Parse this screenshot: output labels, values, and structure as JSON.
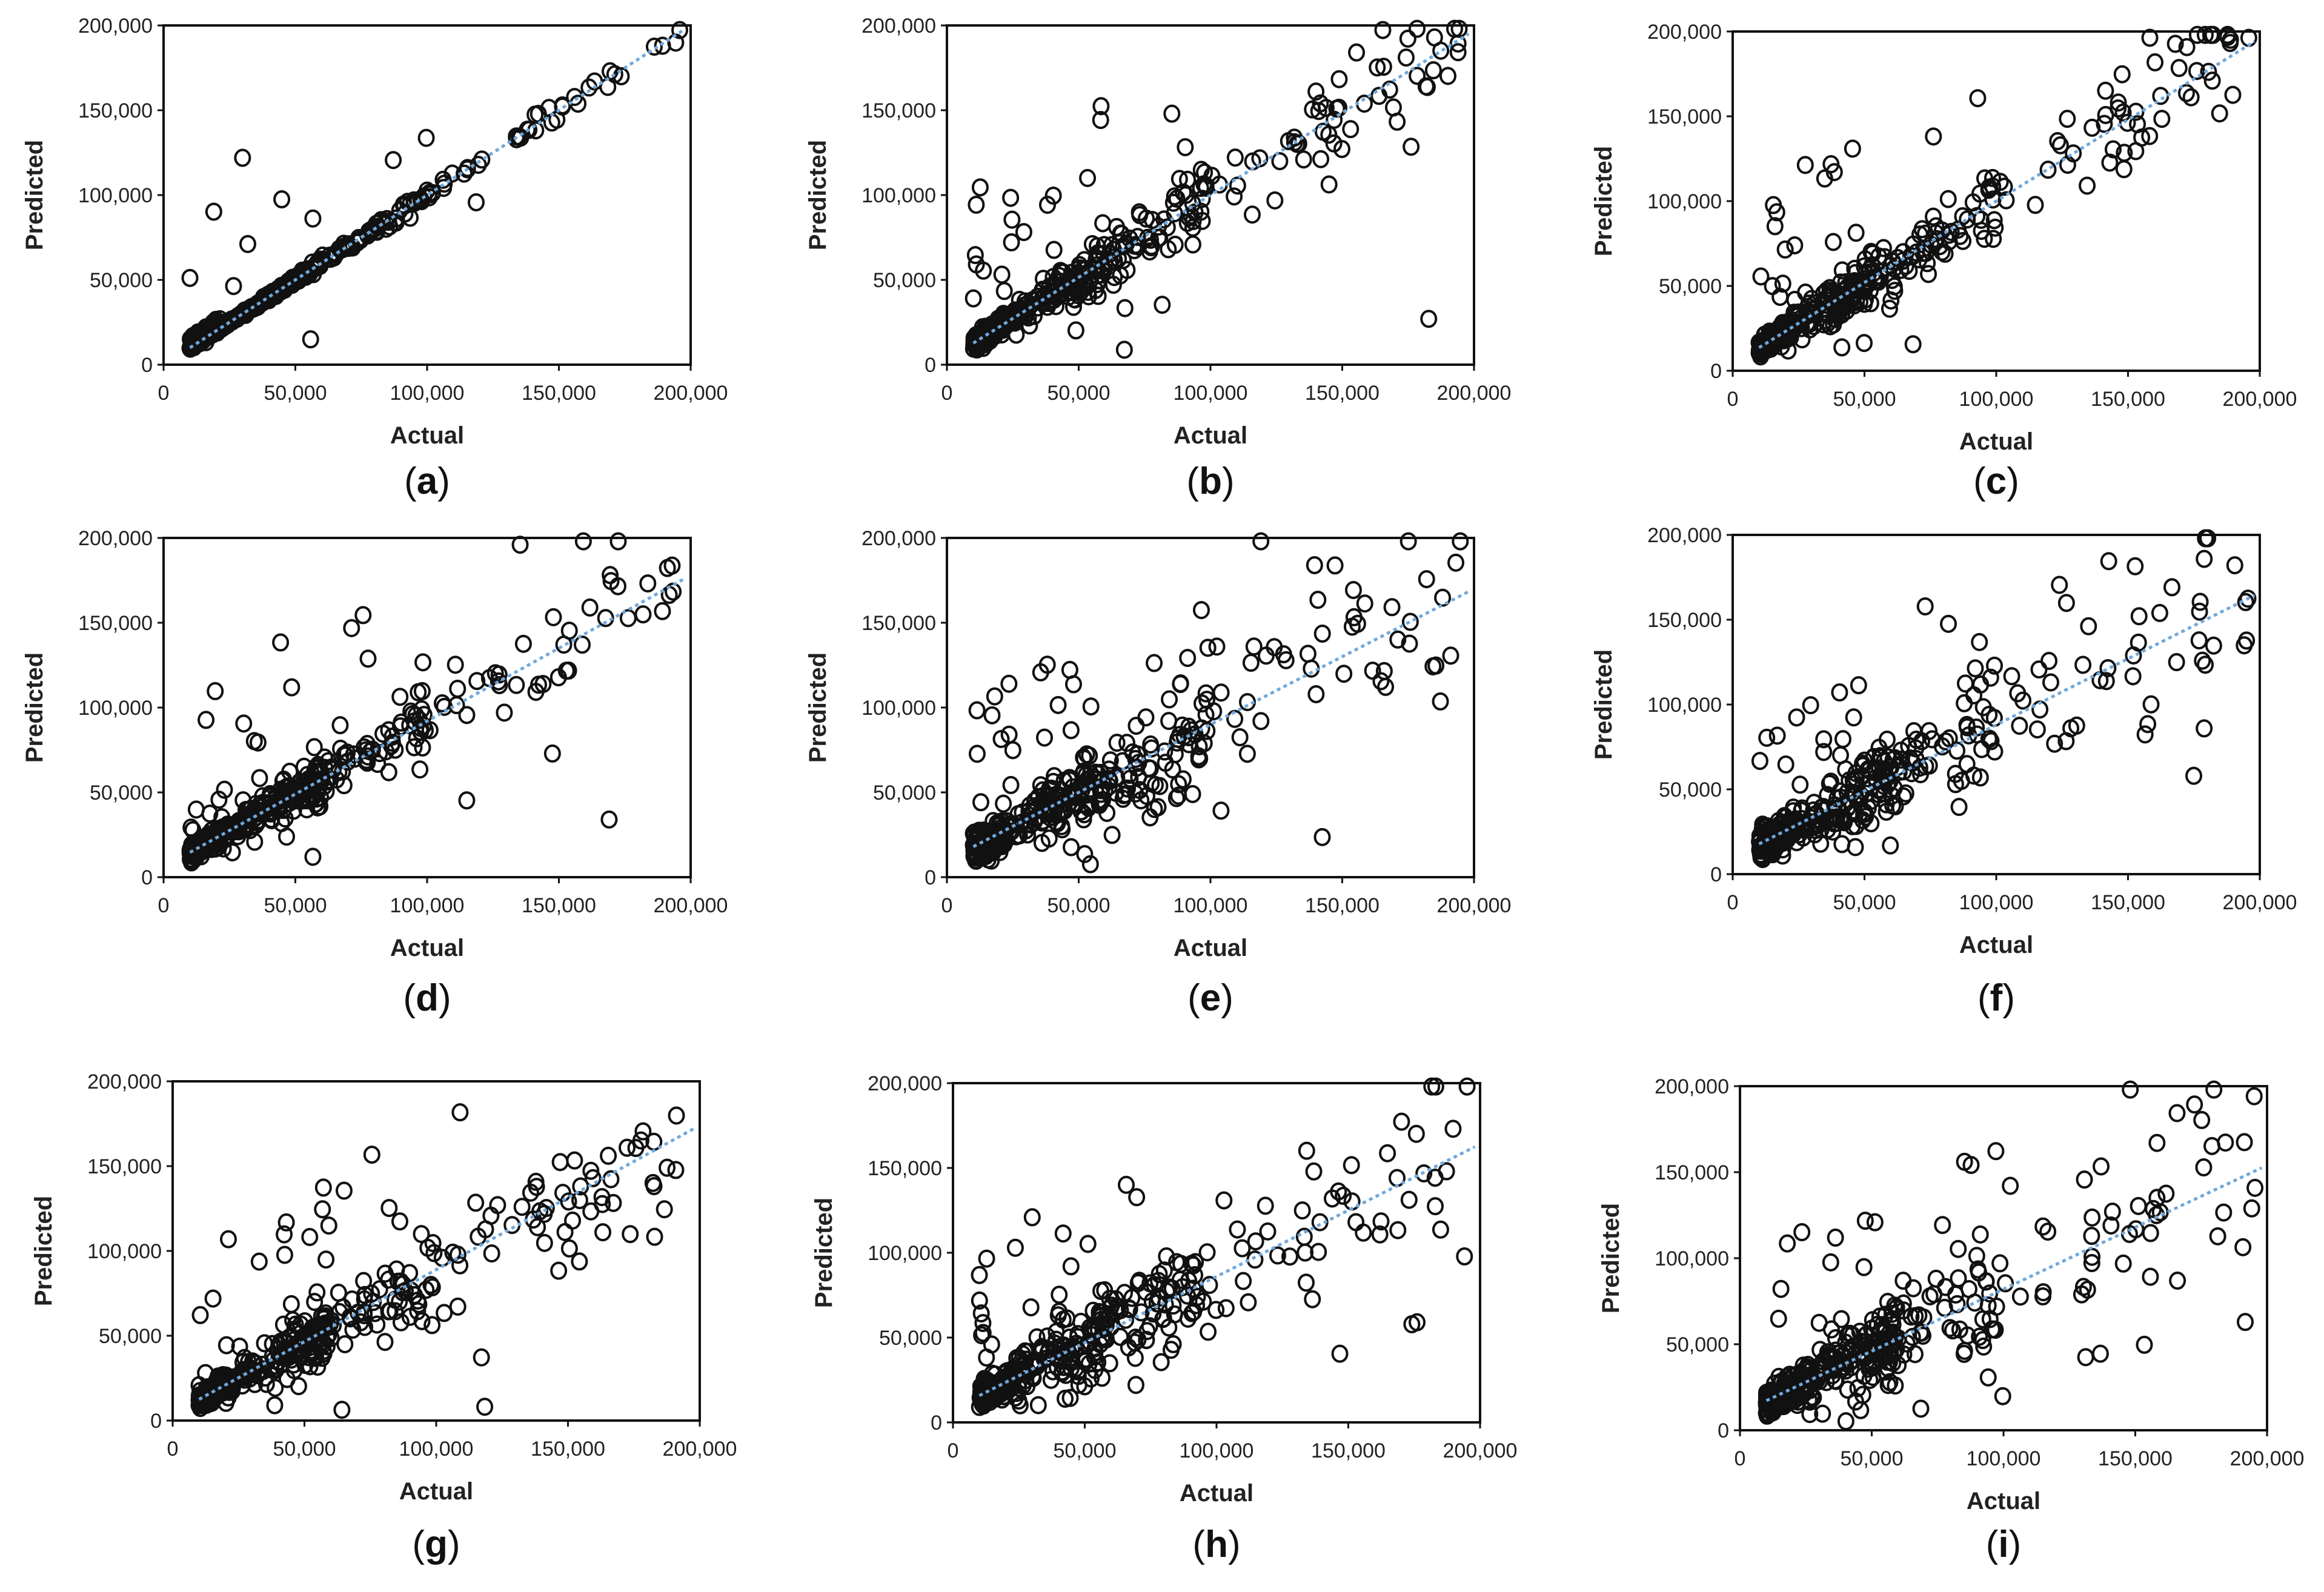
{
  "figure": {
    "background": "#ffffff",
    "marker_color": "#111111",
    "trend_color": "#6fa8dc"
  },
  "chart_data": [
    {
      "id": "a",
      "type": "scatter",
      "title": "",
      "panel_label_open": "(",
      "panel_letter": "a",
      "panel_label_close": ")",
      "xlabel": "Actual",
      "ylabel": "Predicted",
      "xlim": [
        0,
        200000
      ],
      "ylim": [
        0,
        200000
      ],
      "xticks": [
        0,
        50000,
        100000,
        150000,
        200000
      ],
      "yticks": [
        0,
        50000,
        100000,
        150000,
        200000
      ],
      "xtick_labels": [
        "0",
        "50,000",
        "100,000",
        "150,000",
        "200,000"
      ],
      "ytick_labels": [
        "0",
        "50,000",
        "100,000",
        "150,000",
        "200,000"
      ],
      "trend": {
        "slope": 1.0,
        "intercept": 0
      },
      "spread": 0.03,
      "outlier_rate": 0.04
    },
    {
      "id": "b",
      "type": "scatter",
      "title": "",
      "panel_label_open": "(",
      "panel_letter": "b",
      "panel_label_close": ")",
      "xlabel": "Actual",
      "ylabel": "Predicted",
      "xlim": [
        0,
        200000
      ],
      "ylim": [
        0,
        200000
      ],
      "xticks": [
        0,
        50000,
        100000,
        150000,
        200000
      ],
      "yticks": [
        0,
        50000,
        100000,
        150000,
        200000
      ],
      "xtick_labels": [
        "0",
        "50,000",
        "100,000",
        "150,000",
        "200,000"
      ],
      "ytick_labels": [
        "0",
        "50,000",
        "100,000",
        "150,000",
        "200,000"
      ],
      "trend": {
        "slope": 0.97,
        "intercept": 3000
      },
      "spread": 0.18,
      "outlier_rate": 0.08
    },
    {
      "id": "c",
      "type": "scatter",
      "title": "",
      "panel_label_open": "(",
      "panel_letter": "c",
      "panel_label_close": ")",
      "xlabel": "Actual",
      "ylabel": "Predicted",
      "xlim": [
        0,
        200000
      ],
      "ylim": [
        0,
        200000
      ],
      "xticks": [
        0,
        50000,
        100000,
        150000,
        200000
      ],
      "yticks": [
        0,
        50000,
        100000,
        150000,
        200000
      ],
      "xtick_labels": [
        "0",
        "50,000",
        "100,000",
        "150,000",
        "200,000"
      ],
      "ytick_labels": [
        "0",
        "50,000",
        "100,000",
        "150,000",
        "200,000"
      ],
      "trend": {
        "slope": 0.96,
        "intercept": 4000
      },
      "spread": 0.18,
      "outlier_rate": 0.08
    },
    {
      "id": "d",
      "type": "scatter",
      "title": "",
      "panel_label_open": "(",
      "panel_letter": "d",
      "panel_label_close": ")",
      "xlabel": "Actual",
      "ylabel": "Predicted",
      "xlim": [
        0,
        200000
      ],
      "ylim": [
        0,
        200000
      ],
      "xticks": [
        0,
        50000,
        100000,
        150000,
        200000
      ],
      "yticks": [
        0,
        50000,
        100000,
        150000,
        200000
      ],
      "xtick_labels": [
        "0",
        "50,000",
        "100,000",
        "150,000",
        "200,000"
      ],
      "ytick_labels": [
        "0",
        "50,000",
        "100,000",
        "150,000",
        "200,000"
      ],
      "trend": {
        "slope": 0.86,
        "intercept": 6000
      },
      "spread": 0.15,
      "outlier_rate": 0.12
    },
    {
      "id": "e",
      "type": "scatter",
      "title": "",
      "panel_label_open": "(",
      "panel_letter": "e",
      "panel_label_close": ")",
      "xlabel": "Actual",
      "ylabel": "Predicted",
      "xlim": [
        0,
        200000
      ],
      "ylim": [
        0,
        200000
      ],
      "xticks": [
        0,
        50000,
        100000,
        150000,
        200000
      ],
      "yticks": [
        0,
        50000,
        100000,
        150000,
        200000
      ],
      "xtick_labels": [
        "0",
        "50,000",
        "100,000",
        "150,000",
        "200,000"
      ],
      "ytick_labels": [
        "0",
        "50,000",
        "100,000",
        "150,000",
        "200,000"
      ],
      "trend": {
        "slope": 0.8,
        "intercept": 10000
      },
      "spread": 0.28,
      "outlier_rate": 0.1
    },
    {
      "id": "f",
      "type": "scatter",
      "title": "",
      "panel_label_open": "(",
      "panel_letter": "f",
      "panel_label_close": ")",
      "xlabel": "Actual",
      "ylabel": "Predicted",
      "xlim": [
        0,
        200000
      ],
      "ylim": [
        0,
        200000
      ],
      "xticks": [
        0,
        50000,
        100000,
        150000,
        200000
      ],
      "yticks": [
        0,
        50000,
        100000,
        150000,
        200000
      ],
      "xtick_labels": [
        "0",
        "50,000",
        "100,000",
        "150,000",
        "200,000"
      ],
      "ytick_labels": [
        "0",
        "50,000",
        "100,000",
        "150,000",
        "200,000"
      ],
      "trend": {
        "slope": 0.78,
        "intercept": 10000
      },
      "spread": 0.28,
      "outlier_rate": 0.1
    },
    {
      "id": "g",
      "type": "scatter",
      "title": "",
      "panel_label_open": "(",
      "panel_letter": "g",
      "panel_label_close": ")",
      "xlabel": "Actual",
      "ylabel": "Predicted",
      "xlim": [
        0,
        200000
      ],
      "ylim": [
        0,
        200000
      ],
      "xticks": [
        0,
        50000,
        100000,
        150000,
        200000
      ],
      "yticks": [
        0,
        50000,
        100000,
        150000,
        200000
      ],
      "xtick_labels": [
        "0",
        "50,000",
        "100,000",
        "150,000",
        "200,000"
      ],
      "ytick_labels": [
        "0",
        "50,000",
        "100,000",
        "150,000",
        "200,000"
      ],
      "trend": {
        "slope": 0.85,
        "intercept": 4000
      },
      "spread": 0.2,
      "outlier_rate": 0.12
    },
    {
      "id": "h",
      "type": "scatter",
      "title": "",
      "panel_label_open": "(",
      "panel_letter": "h",
      "panel_label_close": ")",
      "xlabel": "Actual",
      "ylabel": "Predicted",
      "xlim": [
        0,
        200000
      ],
      "ylim": [
        0,
        200000
      ],
      "xticks": [
        0,
        50000,
        100000,
        150000,
        200000
      ],
      "yticks": [
        0,
        50000,
        100000,
        150000,
        200000
      ],
      "xtick_labels": [
        "0",
        "50,000",
        "100,000",
        "150,000",
        "200,000"
      ],
      "ytick_labels": [
        "0",
        "50,000",
        "100,000",
        "150,000",
        "200,000"
      ],
      "trend": {
        "slope": 0.78,
        "intercept": 8000
      },
      "spread": 0.28,
      "outlier_rate": 0.12
    },
    {
      "id": "i",
      "type": "scatter",
      "title": "",
      "panel_label_open": "(",
      "panel_letter": "i",
      "panel_label_close": ")",
      "xlabel": "Actual",
      "ylabel": "Predicted",
      "xlim": [
        0,
        200000
      ],
      "ylim": [
        0,
        200000
      ],
      "xticks": [
        0,
        50000,
        100000,
        150000,
        200000
      ],
      "yticks": [
        0,
        50000,
        100000,
        150000,
        200000
      ],
      "xtick_labels": [
        "0",
        "50,000",
        "100,000",
        "150,000",
        "200,000"
      ],
      "ytick_labels": [
        "0",
        "50,000",
        "100,000",
        "150,000",
        "200,000"
      ],
      "trend": {
        "slope": 0.72,
        "intercept": 10000
      },
      "spread": 0.3,
      "outlier_rate": 0.12
    }
  ]
}
